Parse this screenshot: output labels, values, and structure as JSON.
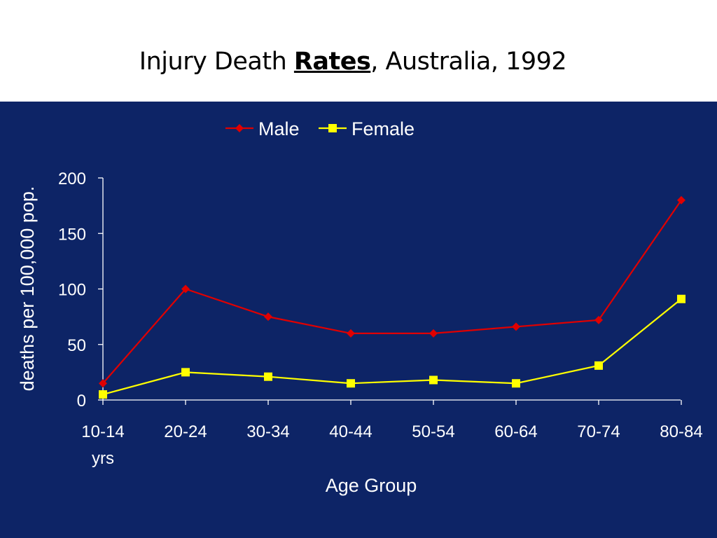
{
  "slide": {
    "title_prefix": "Injury Death ",
    "title_emphasis": "Rates",
    "title_suffix": ", Australia, 1992"
  },
  "colors": {
    "panel_background": "#0d2466",
    "male": "#e00000",
    "female": "#ffff00",
    "axis": "#ffffff"
  },
  "chart_data": {
    "type": "line",
    "title": "",
    "categories": [
      "10-14",
      "20-24",
      "30-34",
      "40-44",
      "50-54",
      "60-64",
      "70-74",
      "80-84"
    ],
    "first_category_unit": "yrs",
    "xlabel": "Age Group",
    "ylabel": "deaths per 100,000 pop.",
    "ylim": [
      0,
      200
    ],
    "yticks": [
      0,
      50,
      100,
      150,
      200
    ],
    "grid": false,
    "legend_position": "top",
    "series": [
      {
        "name": "Male",
        "marker": "diamond",
        "values": [
          15,
          100,
          75,
          60,
          60,
          66,
          72,
          180
        ]
      },
      {
        "name": "Female",
        "marker": "square",
        "values": [
          5,
          25,
          21,
          15,
          18,
          15,
          31,
          91
        ]
      }
    ]
  }
}
